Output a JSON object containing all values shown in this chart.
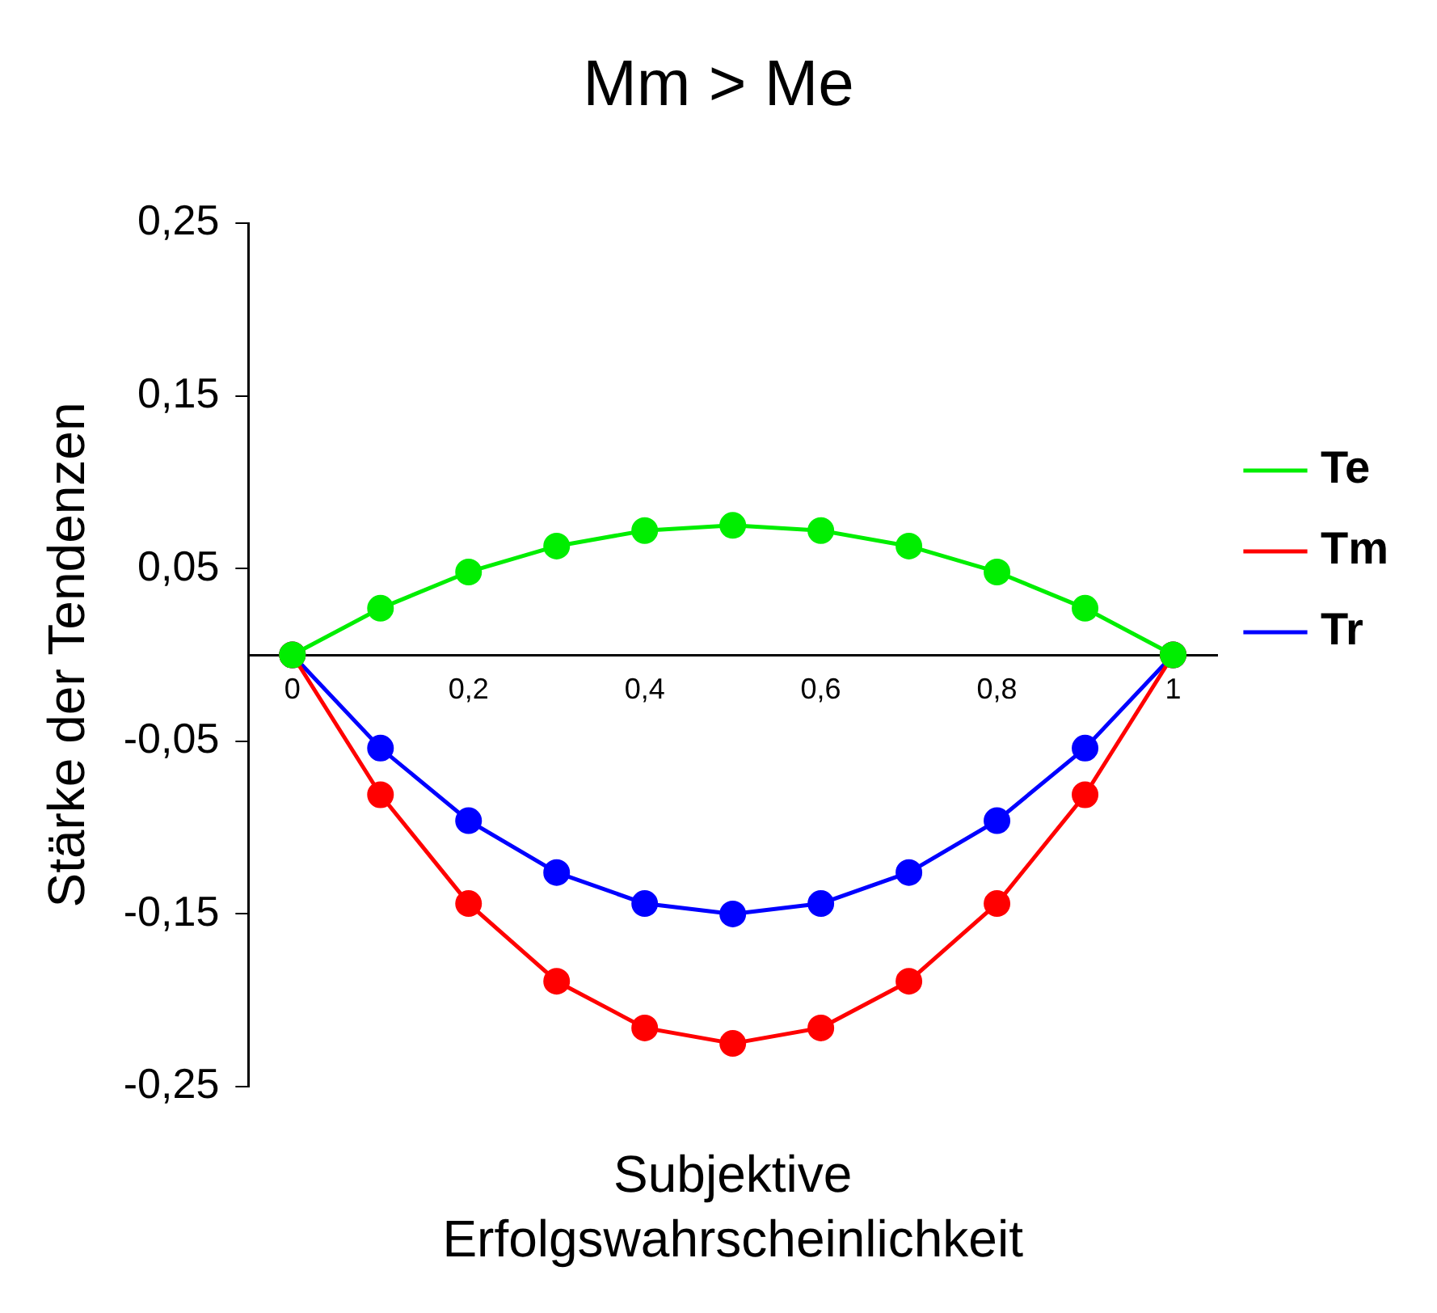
{
  "chart_data": {
    "type": "line",
    "title": "Mm > Me",
    "xlabel": "Subjektive\nErfolgswahrscheinlichkeit",
    "ylabel": "Stärke der Tendenzen",
    "x": [
      0,
      0.1,
      0.2,
      0.3,
      0.4,
      0.5,
      0.6,
      0.7,
      0.8,
      0.9,
      1
    ],
    "series": [
      {
        "name": "Te",
        "color": "#00ee00",
        "values": [
          0,
          0.027,
          0.048,
          0.063,
          0.072,
          0.075,
          0.072,
          0.063,
          0.048,
          0.027,
          0
        ]
      },
      {
        "name": "Tm",
        "color": "#ff0000",
        "values": [
          0,
          -0.081,
          -0.144,
          -0.189,
          -0.216,
          -0.225,
          -0.216,
          -0.189,
          -0.144,
          -0.081,
          0
        ]
      },
      {
        "name": "Tr",
        "color": "#0000ff",
        "values": [
          0,
          -0.054,
          -0.096,
          -0.126,
          -0.144,
          -0.15,
          -0.144,
          -0.126,
          -0.096,
          -0.054,
          0
        ]
      }
    ],
    "xlim": [
      -0.05,
      1.05
    ],
    "xticks": [
      {
        "value": 0,
        "label": "0"
      },
      {
        "value": 0.2,
        "label": "0,2"
      },
      {
        "value": 0.4,
        "label": "0,4"
      },
      {
        "value": 0.6,
        "label": "0,6"
      },
      {
        "value": 0.8,
        "label": "0,8"
      },
      {
        "value": 1,
        "label": "1"
      }
    ],
    "ylim": [
      -0.25,
      0.25
    ],
    "yticks": [
      {
        "value": -0.25,
        "label": "-0,25"
      },
      {
        "value": -0.15,
        "label": "-0,15"
      },
      {
        "value": -0.05,
        "label": "-0,05"
      },
      {
        "value": 0.05,
        "label": "0,05"
      },
      {
        "value": 0.15,
        "label": "0,15"
      },
      {
        "value": 0.25,
        "label": "0,25"
      }
    ],
    "grid": false,
    "legend": "right",
    "marker": "circle",
    "line_style": "solid"
  }
}
